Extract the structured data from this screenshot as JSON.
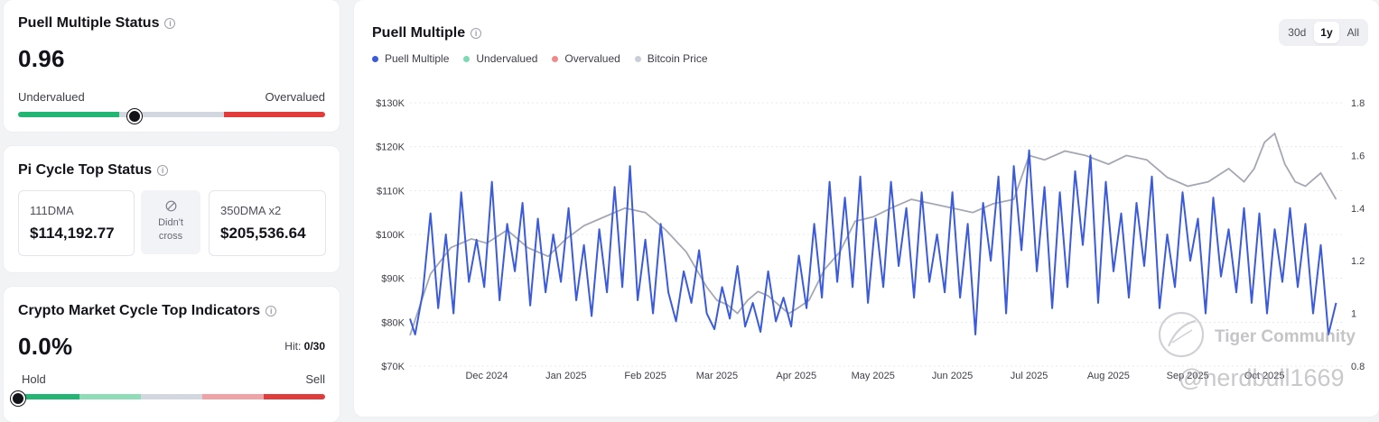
{
  "puell_status": {
    "title": "Puell Multiple Status",
    "value": "0.96",
    "left_label": "Undervalued",
    "right_label": "Overvalued",
    "position_fraction": 0.38
  },
  "pi_cycle": {
    "title": "Pi Cycle Top Status",
    "dma111_label": "111DMA",
    "dma111_value": "$114,192.77",
    "cross_line1": "Didn't",
    "cross_line2": "cross",
    "dma350_label": "350DMA x2",
    "dma350_value": "$205,536.64"
  },
  "cycle_top": {
    "title": "Crypto Market Cycle Top Indicators",
    "value": "0.0%",
    "hit_label": "Hit:",
    "hit_value": "0/30",
    "left_label": "Hold",
    "right_label": "Sell",
    "position_fraction": 0.0
  },
  "chart_card": {
    "title": "Puell Multiple",
    "ranges": [
      "30d",
      "1y",
      "All"
    ],
    "active_range": "1y",
    "legend": [
      {
        "label": "Puell Multiple",
        "color": "#3b5bdb"
      },
      {
        "label": "Undervalued",
        "color": "#7dd9b3"
      },
      {
        "label": "Overvalued",
        "color": "#f08a8a"
      },
      {
        "label": "Bitcoin Price",
        "color": "#c9ced8"
      }
    ],
    "watermark_text": "Tiger Community",
    "watermark_handle": "@nerdbull1669"
  },
  "colors": {
    "green": "#22b574",
    "light_green": "#8fdcb8",
    "gray": "#d3d7df",
    "light_red": "#f0a3a7",
    "red": "#e23b3b",
    "puell_line": "#3b5bdb",
    "btc_line": "#a3a8b3"
  },
  "chart_data": {
    "type": "line",
    "title": "Puell Multiple",
    "x_tick_labels": [
      "Dec 2024",
      "Jan 2025",
      "Feb 2025",
      "Mar 2025",
      "Apr 2025",
      "May 2025",
      "Jun 2025",
      "Jul 2025",
      "Aug 2025",
      "Sep 2025",
      "Oct 2025"
    ],
    "x_tick_days": [
      30,
      61,
      92,
      120,
      151,
      181,
      212,
      242,
      273,
      304,
      334
    ],
    "x_range_days": [
      0,
      365
    ],
    "y_left_ticks": [
      "$70K",
      "$80K",
      "$90K",
      "$100K",
      "$110K",
      "$120K",
      "$130K"
    ],
    "y_left_tick_values": [
      70000,
      80000,
      90000,
      100000,
      110000,
      120000,
      130000
    ],
    "y_left_range": [
      70000,
      130000
    ],
    "y_right_ticks": [
      "0.8",
      "1",
      "1.2",
      "1.4",
      "1.6",
      "1.8"
    ],
    "y_right_tick_values": [
      0.8,
      1.0,
      1.2,
      1.4,
      1.6,
      1.8
    ],
    "y_right_range": [
      0.8,
      1.8
    ],
    "series": [
      {
        "name": "Bitcoin Price",
        "axis": "left",
        "x": [
          0,
          8,
          16,
          24,
          30,
          38,
          46,
          54,
          61,
          68,
          76,
          84,
          92,
          100,
          108,
          116,
          120,
          124,
          128,
          132,
          136,
          140,
          144,
          148,
          151,
          156,
          162,
          168,
          174,
          181,
          188,
          196,
          204,
          212,
          220,
          228,
          236,
          242,
          248,
          256,
          264,
          273,
          280,
          288,
          296,
          304,
          312,
          320,
          326,
          330,
          334,
          338,
          342,
          346,
          350,
          356,
          362
        ],
        "values": [
          77000,
          91000,
          97000,
          99000,
          98000,
          101000,
          97000,
          95000,
          99000,
          102000,
          104000,
          106000,
          105000,
          101000,
          96000,
          88000,
          85000,
          84000,
          82000,
          85000,
          87000,
          86000,
          84000,
          82000,
          83000,
          85000,
          92000,
          96000,
          103000,
          104000,
          106000,
          108000,
          107000,
          106000,
          105000,
          107000,
          108000,
          118000,
          117000,
          119000,
          118000,
          116000,
          118000,
          117000,
          113000,
          111000,
          112000,
          115000,
          112000,
          115000,
          121000,
          123000,
          116000,
          112000,
          111000,
          114000,
          108000
        ]
      },
      {
        "name": "Puell Multiple",
        "axis": "right",
        "x": [
          0,
          2,
          5,
          8,
          11,
          14,
          17,
          20,
          23,
          26,
          29,
          32,
          35,
          38,
          41,
          44,
          47,
          50,
          53,
          56,
          59,
          62,
          65,
          68,
          71,
          74,
          77,
          80,
          83,
          86,
          89,
          92,
          95,
          98,
          101,
          104,
          107,
          110,
          113,
          116,
          119,
          122,
          125,
          128,
          131,
          134,
          137,
          140,
          143,
          146,
          149,
          152,
          155,
          158,
          161,
          164,
          167,
          170,
          173,
          176,
          179,
          182,
          185,
          188,
          191,
          194,
          197,
          200,
          203,
          206,
          209,
          212,
          215,
          218,
          221,
          224,
          227,
          230,
          233,
          236,
          239,
          242,
          245,
          248,
          251,
          254,
          257,
          260,
          263,
          266,
          269,
          272,
          275,
          278,
          281,
          284,
          287,
          290,
          293,
          296,
          299,
          302,
          305,
          308,
          311,
          314,
          317,
          320,
          323,
          326,
          329,
          332,
          335,
          338,
          341,
          344,
          347,
          350,
          353,
          356,
          359,
          362
        ],
        "values": [
          0.98,
          0.92,
          1.08,
          1.38,
          1.02,
          1.3,
          1.0,
          1.46,
          1.12,
          1.28,
          1.1,
          1.5,
          1.05,
          1.34,
          1.16,
          1.42,
          1.03,
          1.36,
          1.08,
          1.3,
          1.12,
          1.4,
          1.05,
          1.26,
          0.99,
          1.32,
          1.08,
          1.48,
          1.1,
          1.56,
          1.05,
          1.28,
          1.0,
          1.34,
          1.08,
          0.97,
          1.16,
          1.04,
          1.24,
          1.0,
          0.94,
          1.1,
          0.98,
          1.18,
          0.95,
          1.04,
          0.93,
          1.16,
          0.97,
          1.06,
          0.95,
          1.22,
          1.02,
          1.34,
          1.06,
          1.5,
          1.12,
          1.44,
          1.1,
          1.52,
          1.04,
          1.36,
          1.1,
          1.5,
          1.18,
          1.4,
          1.06,
          1.46,
          1.12,
          1.3,
          1.08,
          1.46,
          1.06,
          1.34,
          0.92,
          1.42,
          1.2,
          1.52,
          1.0,
          1.56,
          1.24,
          1.62,
          1.16,
          1.48,
          1.02,
          1.46,
          1.1,
          1.54,
          1.26,
          1.6,
          1.04,
          1.5,
          1.16,
          1.38,
          1.06,
          1.42,
          1.18,
          1.52,
          1.02,
          1.3,
          1.1,
          1.46,
          1.2,
          1.36,
          1.0,
          1.44,
          1.14,
          1.32,
          1.08,
          1.4,
          1.04,
          1.38,
          1.0,
          1.32,
          1.12,
          1.4,
          1.1,
          1.34,
          1.0,
          1.26,
          0.92,
          1.04
        ]
      }
    ]
  }
}
